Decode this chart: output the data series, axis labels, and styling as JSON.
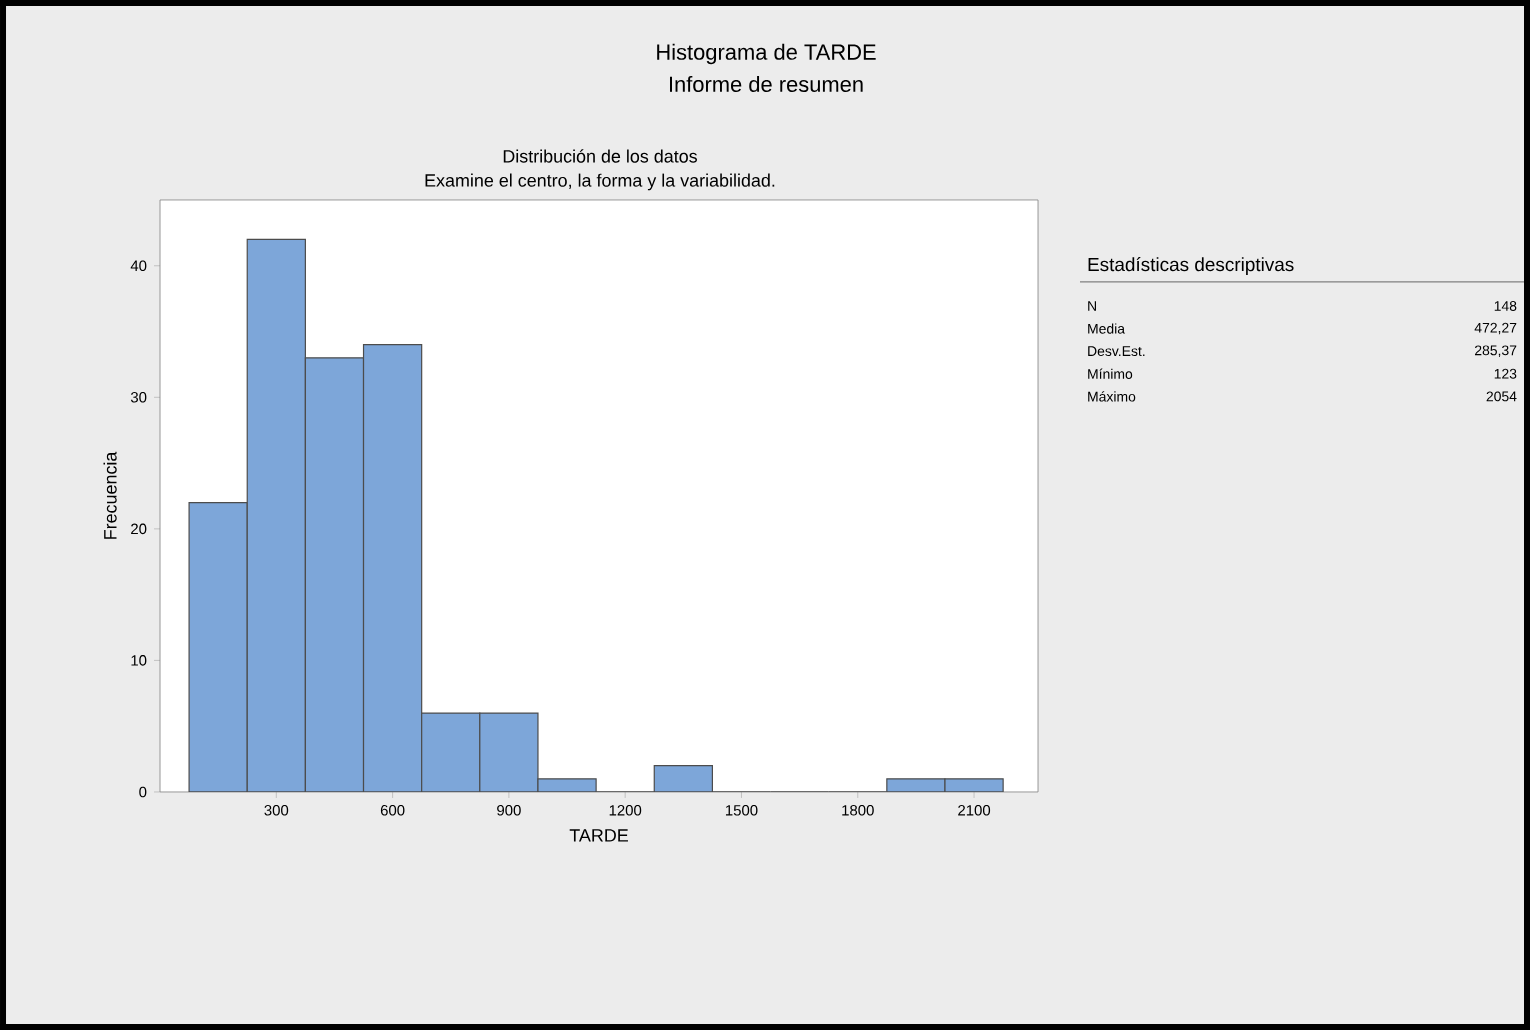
{
  "chart_data": {
    "type": "histogram",
    "title": "Histograma de TARDE",
    "subtitle": "Informe de resumen",
    "xlabel": "TARDE",
    "ylabel": "Frecuencia",
    "bins": [
      75,
      225,
      375,
      525,
      675,
      825,
      975,
      1125,
      1275,
      1425,
      1575,
      1725,
      1875,
      2025,
      2175
    ],
    "values": [
      22,
      42,
      33,
      34,
      6,
      6,
      1,
      0,
      2,
      0,
      0,
      0,
      1,
      1
    ],
    "color": "#7da6d9",
    "xlim": [
      0,
      2265
    ],
    "ylim": [
      0,
      45
    ],
    "xticks": [
      300,
      600,
      900,
      1200,
      1500,
      1800,
      2100
    ],
    "yticks": [
      0,
      10,
      20,
      30,
      40
    ],
    "grid": false,
    "annotations": [
      "Distribución de los datos",
      "Examine el centro, la forma y la variabilidad.",
      "Estadísticas descriptivas",
      "N",
      "148",
      "Media",
      "472,27",
      "Desv.Est.",
      "285,37",
      "Mínimo",
      "123",
      "Máximo",
      "2054"
    ]
  }
}
